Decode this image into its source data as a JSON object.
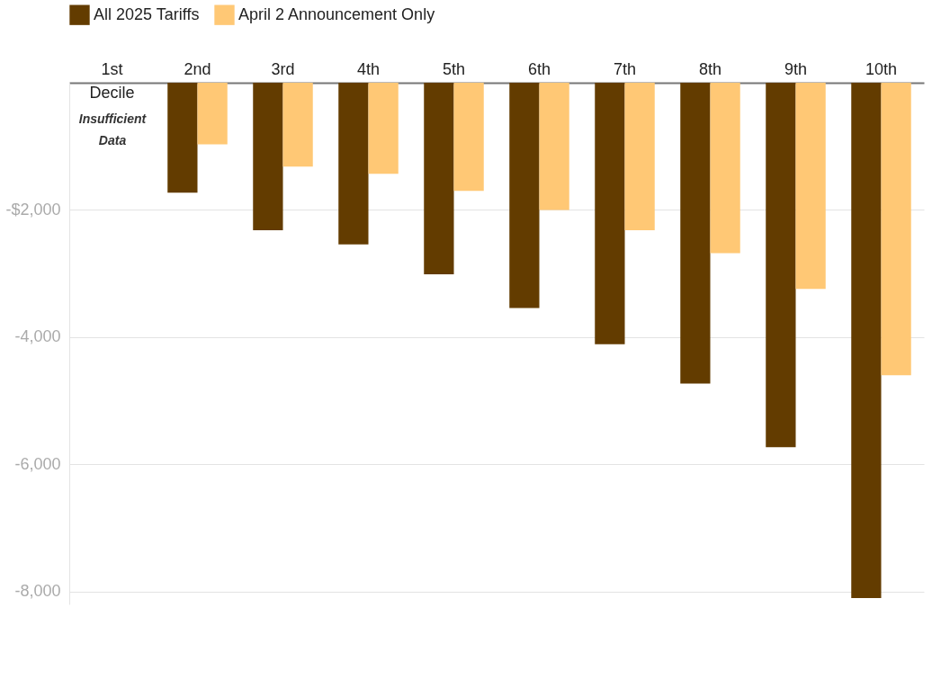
{
  "chart_data": {
    "type": "bar",
    "categories": [
      "1st Decile",
      "2nd",
      "3rd",
      "4th",
      "5th",
      "6th",
      "7th",
      "8th",
      "9th",
      "10th"
    ],
    "series": [
      {
        "name": "All 2025 Tariffs",
        "color": "#633c00",
        "values": [
          null,
          -1730,
          -2320,
          -2540,
          -3010,
          -3540,
          -4110,
          -4730,
          -5730,
          -8100
        ]
      },
      {
        "name": "April 2 Announcement Only",
        "color": "#ffc875",
        "values": [
          null,
          -970,
          -1320,
          -1430,
          -1700,
          -2000,
          -2320,
          -2680,
          -3240,
          -4600
        ]
      }
    ],
    "ylim": [
      -8200,
      0
    ],
    "yticks": [
      {
        "value": -2000,
        "label": "-$2,000"
      },
      {
        "value": -4000,
        "label": "-4,000"
      },
      {
        "value": -6000,
        "label": "-6,000"
      },
      {
        "value": -8000,
        "label": "-8,000"
      }
    ],
    "annotations": [
      "Insufficient Data"
    ],
    "grid": "y",
    "legend": "top left"
  }
}
